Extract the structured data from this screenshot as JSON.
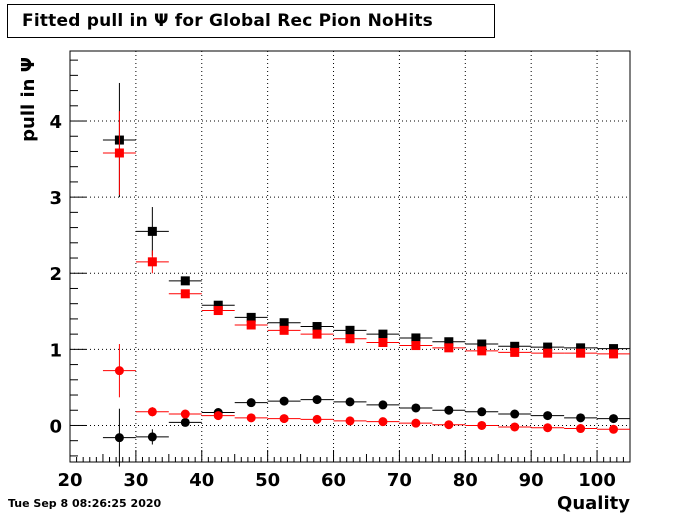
{
  "title": "Fitted pull in  Ψ  for Global Rec Pion NoHits",
  "footer": "Tue Sep  8 08:26:25 2020",
  "chart_data": {
    "type": "scatter",
    "title": "Fitted pull in  Ψ  for Global Rec Pion NoHits",
    "xlabel": "Quality",
    "ylabel": "pull in  Ψ",
    "xlim": [
      20,
      105
    ],
    "ylim": [
      -0.48,
      4.92
    ],
    "grid": true,
    "x_ticks": [
      20,
      30,
      40,
      50,
      60,
      70,
      80,
      90,
      100
    ],
    "y_ticks": [
      0,
      1,
      2,
      3,
      4
    ],
    "series": [
      {
        "marker": "square",
        "color": "#000000",
        "x": [
          27.5,
          32.5,
          37.5,
          42.5,
          47.5,
          52.5,
          57.5,
          62.5,
          67.5,
          72.5,
          77.5,
          82.5,
          87.5,
          92.5,
          97.5,
          102.5
        ],
        "y": [
          3.75,
          2.55,
          1.9,
          1.58,
          1.42,
          1.35,
          1.3,
          1.25,
          1.2,
          1.15,
          1.1,
          1.07,
          1.04,
          1.03,
          1.02,
          1.01
        ],
        "yerr": [
          0.75,
          0.32,
          0.05,
          0.03,
          0.02,
          0.02,
          0.02,
          0.02,
          0.02,
          0.02,
          0.02,
          0.02,
          0.02,
          0.02,
          0.02,
          0.02
        ]
      },
      {
        "marker": "square",
        "color": "#ff0000",
        "x": [
          27.5,
          32.5,
          37.5,
          42.5,
          47.5,
          52.5,
          57.5,
          62.5,
          67.5,
          72.5,
          77.5,
          82.5,
          87.5,
          92.5,
          97.5,
          102.5
        ],
        "y": [
          3.58,
          2.15,
          1.73,
          1.51,
          1.32,
          1.25,
          1.2,
          1.14,
          1.09,
          1.05,
          1.02,
          0.98,
          0.96,
          0.95,
          0.95,
          0.94
        ],
        "yerr": [
          0.55,
          0.15,
          0.05,
          0.03,
          0.02,
          0.02,
          0.02,
          0.02,
          0.02,
          0.02,
          0.02,
          0.02,
          0.02,
          0.02,
          0.02,
          0.02
        ]
      },
      {
        "marker": "circle",
        "color": "#000000",
        "x": [
          27.5,
          32.5,
          37.5,
          42.5,
          47.5,
          52.5,
          57.5,
          62.5,
          67.5,
          72.5,
          77.5,
          82.5,
          87.5,
          92.5,
          97.5,
          102.5
        ],
        "y": [
          -0.16,
          -0.15,
          0.04,
          0.17,
          0.3,
          0.32,
          0.34,
          0.31,
          0.27,
          0.23,
          0.2,
          0.18,
          0.15,
          0.13,
          0.1,
          0.09
        ],
        "yerr": [
          0.38,
          0.1,
          0.03,
          0.02,
          0.02,
          0.02,
          0.02,
          0.02,
          0.02,
          0.02,
          0.02,
          0.02,
          0.02,
          0.02,
          0.02,
          0.02
        ]
      },
      {
        "marker": "circle",
        "color": "#ff0000",
        "x": [
          27.5,
          32.5,
          37.5,
          42.5,
          47.5,
          52.5,
          57.5,
          62.5,
          67.5,
          72.5,
          77.5,
          82.5,
          87.5,
          92.5,
          97.5,
          102.5
        ],
        "y": [
          0.72,
          0.18,
          0.15,
          0.13,
          0.1,
          0.09,
          0.08,
          0.06,
          0.05,
          0.03,
          0.01,
          0.0,
          -0.02,
          -0.03,
          -0.04,
          -0.05
        ],
        "yerr": [
          0.35,
          0.06,
          0.03,
          0.02,
          0.02,
          0.02,
          0.02,
          0.02,
          0.02,
          0.02,
          0.02,
          0.02,
          0.02,
          0.02,
          0.02,
          0.02
        ]
      }
    ]
  }
}
